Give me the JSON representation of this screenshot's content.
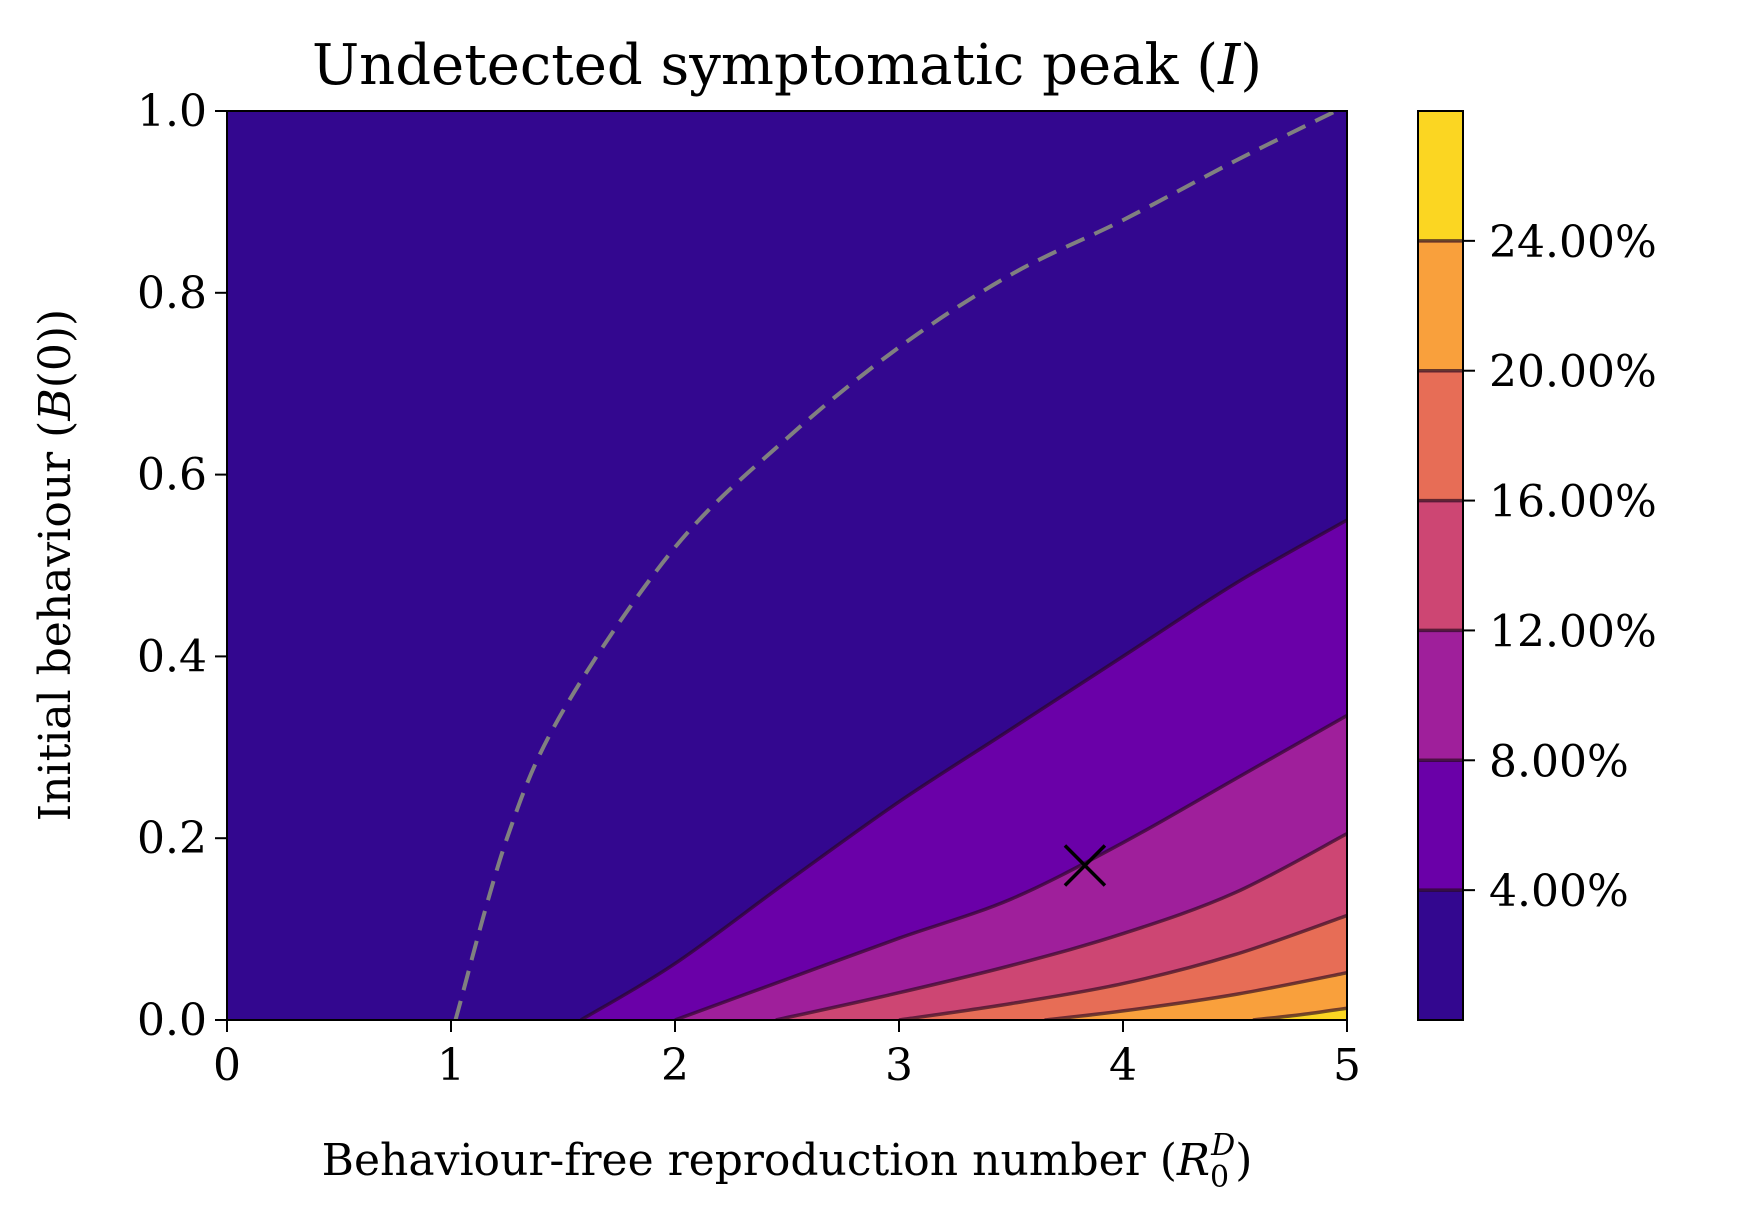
{
  "chart_data": {
    "type": "contourf",
    "title": "Undetected symptomatic peak (I)",
    "xlabel": "Behaviour-free reproduction number (R0D)",
    "ylabel": "Initial behaviour (B(0))",
    "xlim": [
      0,
      5
    ],
    "ylim": [
      0,
      1
    ],
    "xticks": [
      "0",
      "1",
      "2",
      "3",
      "4",
      "5"
    ],
    "yticks": [
      "0.0",
      "0.2",
      "0.4",
      "0.6",
      "0.8",
      "1.0"
    ],
    "grid": false,
    "colormap": "plasma",
    "levels": [
      0,
      0.04,
      0.08,
      0.12,
      0.16,
      0.2,
      0.24,
      0.28
    ],
    "level_colors": [
      "#33078f",
      "#6a00a8",
      "#9f1f9b",
      "#cd4673",
      "#e76d56",
      "#f9a03c",
      "#fbd622"
    ],
    "colorbar": {
      "ticks": [
        "4.00%",
        "8.00%",
        "12.00%",
        "16.00%",
        "20.00%",
        "24.00%"
      ],
      "tick_values": [
        0.04,
        0.08,
        0.12,
        0.16,
        0.2,
        0.24
      ],
      "range": [
        0,
        0.28
      ]
    },
    "contour_lines": [
      {
        "level": "4.00%",
        "points": [
          [
            1.58,
            0
          ],
          [
            2.0,
            0.062
          ],
          [
            2.5,
            0.152
          ],
          [
            3.0,
            0.24
          ],
          [
            3.5,
            0.32
          ],
          [
            4.0,
            0.4
          ],
          [
            4.5,
            0.48
          ],
          [
            5.0,
            0.55
          ]
        ]
      },
      {
        "level": "8.00%",
        "points": [
          [
            2.0,
            0
          ],
          [
            2.5,
            0.045
          ],
          [
            3.0,
            0.09
          ],
          [
            3.5,
            0.133
          ],
          [
            4.0,
            0.195
          ],
          [
            4.5,
            0.265
          ],
          [
            5.0,
            0.335
          ]
        ]
      },
      {
        "level": "12.00%",
        "points": [
          [
            2.45,
            0
          ],
          [
            3.0,
            0.03
          ],
          [
            3.5,
            0.06
          ],
          [
            4.0,
            0.095
          ],
          [
            4.5,
            0.14
          ],
          [
            5.0,
            0.205
          ]
        ]
      },
      {
        "level": "16.00%",
        "points": [
          [
            3.0,
            0
          ],
          [
            3.5,
            0.018
          ],
          [
            4.0,
            0.04
          ],
          [
            4.5,
            0.072
          ],
          [
            5.0,
            0.115
          ]
        ]
      },
      {
        "level": "20.00%",
        "points": [
          [
            3.65,
            0
          ],
          [
            4.0,
            0.01
          ],
          [
            4.5,
            0.028
          ],
          [
            5.0,
            0.052
          ]
        ]
      },
      {
        "level": "24.00%",
        "points": [
          [
            4.58,
            0
          ],
          [
            4.8,
            0.006
          ],
          [
            5.0,
            0.013
          ]
        ]
      }
    ],
    "threshold_curve": {
      "style": "dashed",
      "color": "#808080",
      "points": [
        [
          1.02,
          0
        ],
        [
          1.25,
          0.2
        ],
        [
          1.5,
          0.34
        ],
        [
          2.0,
          0.52
        ],
        [
          2.5,
          0.64
        ],
        [
          3.0,
          0.74
        ],
        [
          3.5,
          0.82
        ],
        [
          4.0,
          0.88
        ],
        [
          4.5,
          0.945
        ],
        [
          4.95,
          1.0
        ]
      ]
    },
    "marker": {
      "symbol": "x",
      "x": 3.83,
      "y": 0.17,
      "color": "#000000"
    }
  }
}
